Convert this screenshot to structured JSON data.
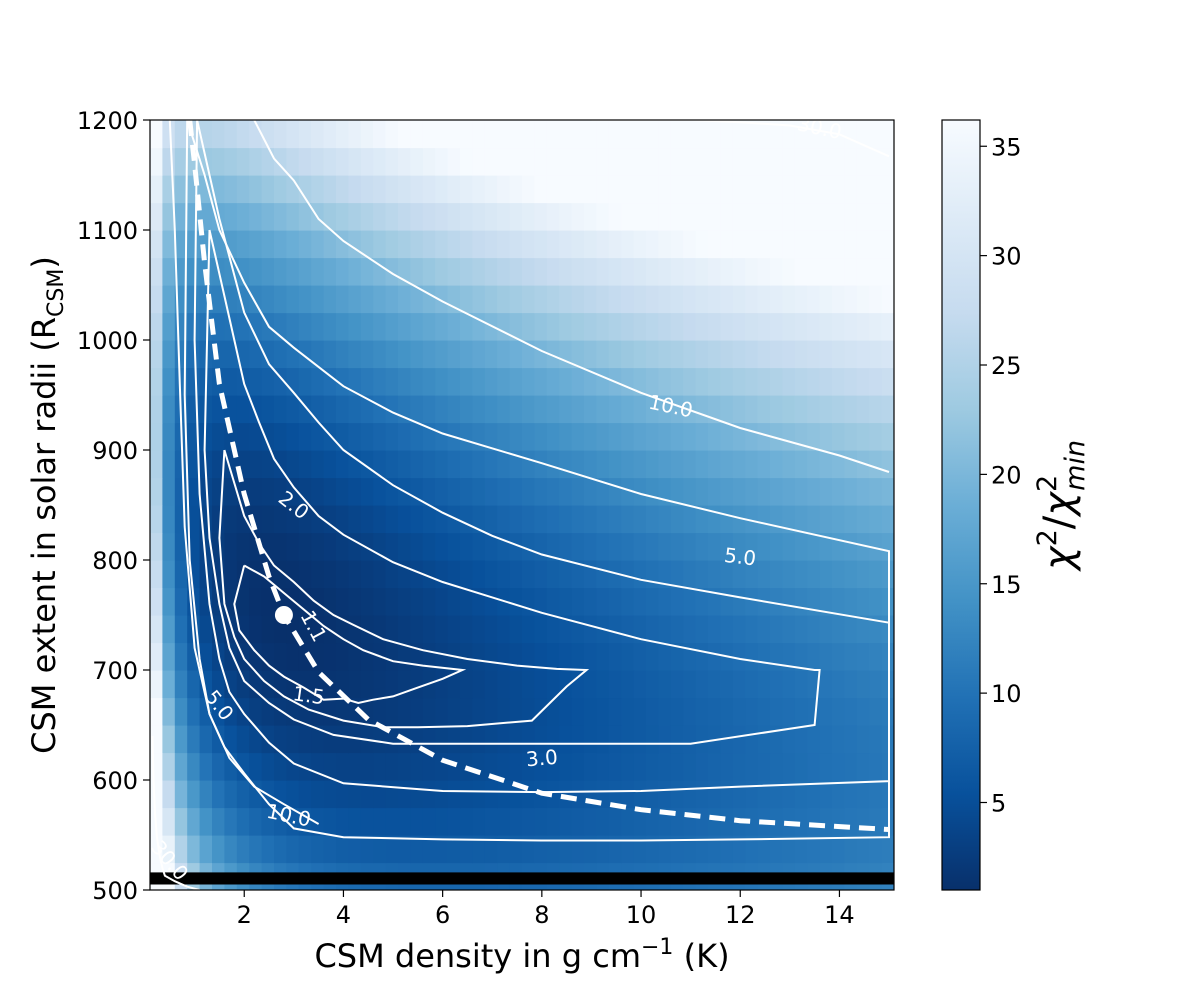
{
  "chart_data": {
    "type": "heatmap",
    "title": "",
    "xlabel_main": "CSM density in g cm",
    "xlabel_sup": "−1",
    "xlabel_tail": " (K)",
    "ylabel_main": "CSM extent in solar radii (R",
    "ylabel_sub": "CSM",
    "ylabel_tail": ")",
    "colorbar_label_base": "χ",
    "colorbar_label_sup": "2",
    "colorbar_label_slash": "/",
    "colorbar_label_sub": "min",
    "colormap": "Blues_r",
    "colormap_low_color": "#08306b",
    "colormap_high_color": "#f7fbff",
    "overlay_color": "#ffffff",
    "xlim": [
      0.1,
      15.1
    ],
    "ylim": [
      500,
      1200
    ],
    "x_ticks": [
      "2",
      "4",
      "6",
      "8",
      "10",
      "12",
      "14"
    ],
    "y_ticks": [
      "500",
      "600",
      "700",
      "800",
      "900",
      "1000",
      "1100",
      "1200"
    ],
    "colorbar_range": [
      1,
      36.2
    ],
    "colorbar_ticks": [
      "5",
      "10",
      "15",
      "20",
      "25",
      "30",
      "35"
    ],
    "heatmap_model": {
      "description_of_model": "chi2/chi2_min grid approx: 1 + 4.5*(ln(rho*R^2/(2.8*750^2)))^2 + 26*(|R-750|/450)^2",
      "r_best": 750,
      "rho_best": 2.8,
      "max": 36.2
    },
    "contour_levels": [
      {
        "level": "1.1",
        "x": [
          2.0,
          2.4,
          2.8,
          3.2,
          3.6,
          4.0,
          4.4,
          5.0,
          5.6,
          6.4,
          6.0,
          5.5,
          5.0,
          4.6,
          4.3,
          4.0,
          3.6,
          3.2,
          2.8,
          2.5,
          2.2,
          1.9,
          1.8,
          2.0
        ],
        "y": [
          795,
          785,
          770,
          755,
          740,
          728,
          718,
          708,
          704,
          700,
          692,
          684,
          676,
          673,
          670,
          674,
          673,
          684,
          694,
          704,
          718,
          736,
          760,
          795
        ]
      },
      {
        "level": "1.5",
        "x": [
          1.6,
          1.8,
          2.0,
          2.3,
          2.6,
          3.0,
          3.4,
          3.8,
          4.2,
          4.8,
          5.6,
          6.5,
          7.5,
          8.3,
          8.9,
          8.5,
          7.8,
          6.5,
          5.5,
          4.8,
          4.0,
          3.3,
          2.8,
          2.4,
          2.0,
          1.8,
          1.6,
          1.5,
          1.6
        ],
        "y": [
          900,
          870,
          840,
          815,
          795,
          780,
          763,
          750,
          741,
          728,
          718,
          710,
          704,
          701,
          700,
          685,
          654,
          649,
          648,
          648,
          654,
          664,
          676,
          690,
          710,
          730,
          760,
          820,
          900
        ]
      },
      {
        "level": "2.0",
        "x": [
          1.3,
          1.6,
          1.8,
          2.0,
          2.3,
          2.6,
          3.0,
          3.5,
          4.0,
          5.0,
          6.0,
          8.0,
          10.0,
          12.0,
          13.5,
          13.6,
          13.5,
          11.0,
          9.0,
          7.0,
          5.0,
          3.8,
          3.0,
          2.5,
          2.0,
          1.7,
          1.5,
          1.3,
          1.2,
          1.3
        ],
        "y": [
          1100,
          1040,
          1000,
          960,
          925,
          892,
          866,
          840,
          823,
          798,
          780,
          752,
          728,
          710,
          700,
          700,
          650,
          633,
          633,
          633,
          633,
          641,
          655,
          670,
          690,
          720,
          760,
          820,
          900,
          1100
        ]
      },
      {
        "level": "3.0",
        "x": [
          1.05,
          1.5,
          2.0,
          2.5,
          3.0,
          3.5,
          4.0,
          5.0,
          6.0,
          7.0,
          8.0,
          10.0,
          12.0,
          15.0,
          15.0,
          12.0,
          10.0,
          8.0,
          6.0,
          4.0,
          3.0,
          2.5,
          2.0,
          1.7,
          1.5,
          1.3,
          1.1,
          1.0,
          1.05
        ],
        "y": [
          1200,
          1110,
          1025,
          978,
          952,
          925,
          900,
          868,
          843,
          822,
          805,
          782,
          766,
          743,
          599,
          594,
          590,
          589,
          590,
          597,
          615,
          634,
          660,
          680,
          710,
          760,
          860,
          1000,
          1200
        ]
      },
      {
        "level": "5.0",
        "x": [
          0.85,
          1.2,
          1.5,
          2.0,
          2.5,
          3.0,
          4.0,
          5.0,
          6.0,
          8.0,
          10.0,
          12.0,
          15.0,
          15.0,
          12.0,
          10.0,
          8.0,
          6.0,
          4.0,
          3.0,
          2.5,
          2.0,
          1.6,
          1.3,
          1.1,
          0.9,
          0.8,
          0.85
        ],
        "y": [
          1200,
          1150,
          1100,
          1052,
          1012,
          993,
          958,
          934,
          915,
          888,
          860,
          838,
          808,
          548,
          546,
          545,
          545,
          546,
          548,
          556,
          578,
          606,
          630,
          660,
          710,
          800,
          950,
          1200
        ]
      },
      {
        "level": "10.0",
        "x": [
          2.2,
          2.6,
          3.0,
          3.5,
          4.0,
          5.0,
          6.0,
          8.0,
          10.0,
          12.0,
          14.0,
          15.0
        ],
        "y": [
          1200,
          1165,
          1145,
          1110,
          1090,
          1060,
          1035,
          990,
          952,
          920,
          895,
          880
        ]
      },
      {
        "level": "10.0",
        "x": [
          0.5,
          0.6,
          0.7,
          0.8,
          1.0,
          1.3,
          1.7,
          2.2,
          2.8,
          3.5
        ],
        "y": [
          1200,
          1100,
          960,
          830,
          720,
          660,
          620,
          594,
          578,
          560
        ]
      },
      {
        "level": "30.0",
        "x": [
          9.0,
          10.0,
          11.0,
          12.0,
          13.0,
          14.0,
          15.0
        ],
        "y": [
          1200,
          1200,
          1200,
          1198,
          1195,
          1187,
          1167
        ]
      },
      {
        "level": "30.0",
        "x": [
          0.15,
          0.17,
          0.2,
          0.24,
          0.3,
          0.35,
          0.4,
          0.6,
          0.85,
          1.1
        ],
        "y": [
          640,
          600,
          570,
          548,
          530,
          520,
          513,
          508,
          503,
          500
        ]
      }
    ],
    "contour_labels": [
      {
        "text": "30.0",
        "x": 13.6,
        "y": 1193,
        "rot": 12
      },
      {
        "text": "10.0",
        "x": 10.6,
        "y": 940,
        "rot": 12
      },
      {
        "text": "5.0",
        "x": 12.0,
        "y": 803,
        "rot": 7
      },
      {
        "text": "3.0",
        "x": 8.0,
        "y": 620,
        "rot": -5
      },
      {
        "text": "2.0",
        "x": 3.0,
        "y": 850,
        "rot": 38
      },
      {
        "text": "1.1",
        "x": 3.4,
        "y": 740,
        "rot": 62
      },
      {
        "text": "1.5",
        "x": 3.3,
        "y": 677,
        "rot": 8
      },
      {
        "text": "5.0",
        "x": 1.5,
        "y": 668,
        "rot": 52
      },
      {
        "text": "10.0",
        "x": 2.9,
        "y": 568,
        "rot": 12
      },
      {
        "text": "30.0",
        "x": 0.5,
        "y": 527,
        "rot": 50
      }
    ],
    "degeneracy_curve": {
      "x": [
        0.9,
        1.0,
        1.2,
        1.5,
        2.0,
        2.5,
        2.8,
        3.5,
        4.5,
        6.0,
        8.0,
        10.0,
        12.0,
        15.0
      ],
      "y": [
        1200,
        1160,
        1070,
        960,
        860,
        785,
        750,
        698,
        655,
        618,
        588,
        573,
        563,
        555
      ]
    },
    "best_fit_point": {
      "x": 2.8,
      "y": 750
    },
    "excluded_row": {
      "y_from": 505,
      "y_to": 516,
      "color": "#000000"
    }
  }
}
